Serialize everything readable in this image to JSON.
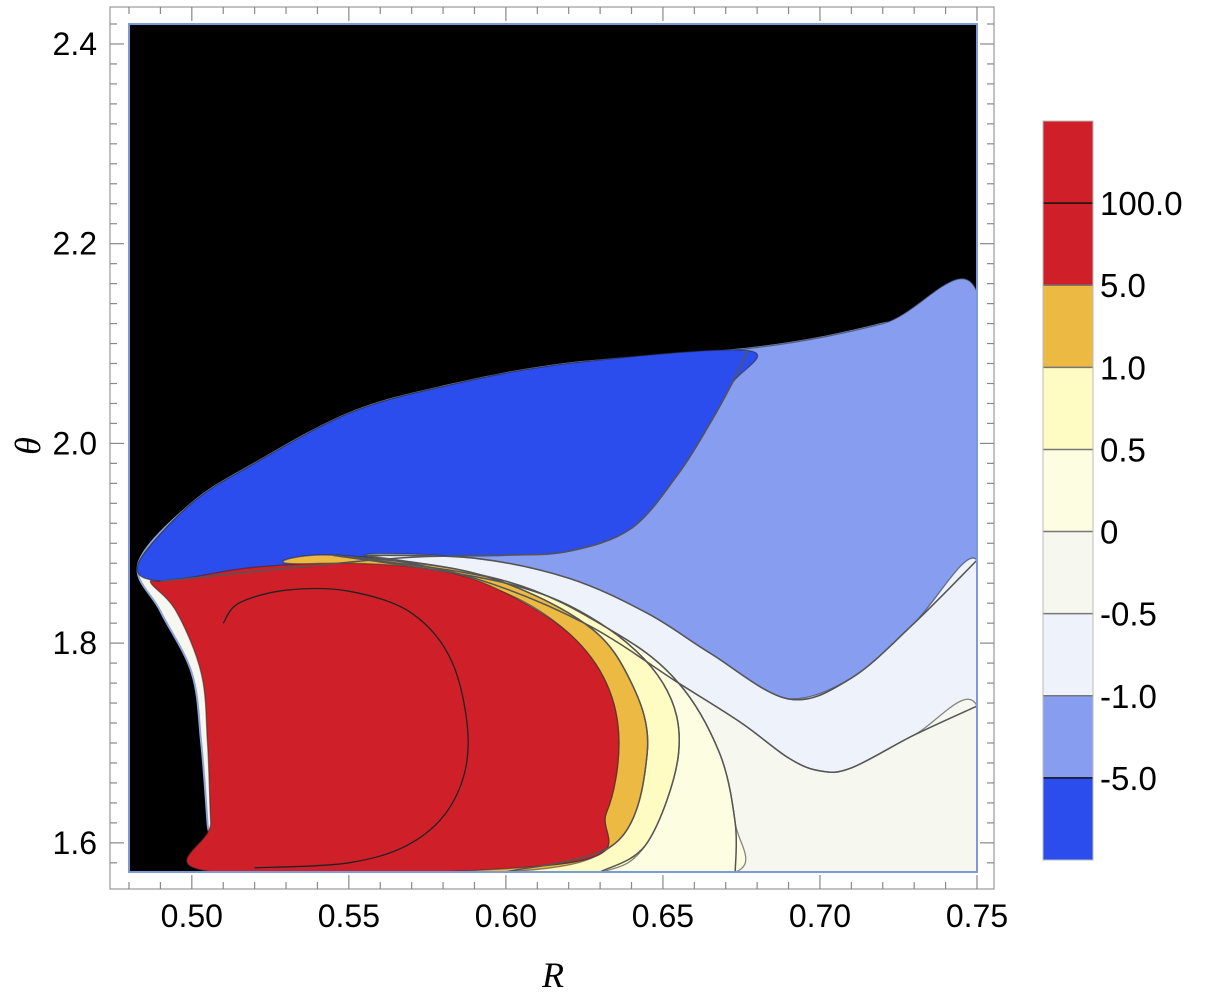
{
  "chart_data": {
    "type": "heatmap",
    "subtype": "filled-contour",
    "title": "",
    "xlabel": "R",
    "ylabel": "θ",
    "xlim": [
      0.48,
      0.75
    ],
    "ylim": [
      1.5708,
      2.42
    ],
    "x_ticks": [
      {
        "value": 0.5,
        "label": "0.50"
      },
      {
        "value": 0.55,
        "label": "0.55"
      },
      {
        "value": 0.6,
        "label": "0.60"
      },
      {
        "value": 0.65,
        "label": "0.65"
      },
      {
        "value": 0.7,
        "label": "0.70"
      },
      {
        "value": 0.75,
        "label": "0.75"
      }
    ],
    "y_ticks": [
      {
        "value": 1.6,
        "label": "1.6"
      },
      {
        "value": 1.8,
        "label": "1.8"
      },
      {
        "value": 2.0,
        "label": "2.0"
      },
      {
        "value": 2.2,
        "label": "2.2"
      },
      {
        "value": 2.4,
        "label": "2.4"
      }
    ],
    "grid": false,
    "legend": "right",
    "contour_levels": [
      "-5.0",
      "-1.0",
      "-0.5",
      "0",
      "0.5",
      "1.0",
      "5.0",
      "100.0"
    ],
    "colorbar": [
      {
        "range": "below -5.0",
        "color": "#2c4ded"
      },
      {
        "range": "-5.0 to -1.0",
        "color": "#869df0"
      },
      {
        "range": "-1.0 to -0.5",
        "color": "#eef2fb"
      },
      {
        "range": "-0.5 to 0",
        "color": "#f6f7ee"
      },
      {
        "range": "0 to 0.5",
        "color": "#fdfde2"
      },
      {
        "range": "0.5 to 1.0",
        "color": "#fefbc3"
      },
      {
        "range": "1.0 to 5.0",
        "color": "#ecb943"
      },
      {
        "range": "5.0 to 100.0",
        "color": "#cf202a"
      },
      {
        "range": "above 100.0",
        "color": "#cf202a"
      }
    ],
    "excluded_region_color": "#000000",
    "regions": [
      {
        "color": "#000000",
        "points": [
          [
            0.48,
            1.5708
          ],
          [
            0.48,
            2.42
          ],
          [
            0.75,
            2.42
          ],
          [
            0.75,
            2.152
          ],
          [
            0.72,
            2.12
          ],
          [
            0.68,
            2.096
          ],
          [
            0.62,
            2.08
          ],
          [
            0.58,
            2.057
          ],
          [
            0.55,
            2.03
          ],
          [
            0.52,
            1.98
          ],
          [
            0.5,
            1.94
          ],
          [
            0.483,
            1.88
          ],
          [
            0.49,
            1.832
          ],
          [
            0.5,
            1.77
          ],
          [
            0.503,
            1.7
          ],
          [
            0.505,
            1.62
          ],
          [
            0.506,
            1.5708
          ]
        ]
      },
      {
        "color": "#869df0",
        "points": [
          [
            0.483,
            1.88
          ],
          [
            0.5,
            1.94
          ],
          [
            0.52,
            1.98
          ],
          [
            0.55,
            2.03
          ],
          [
            0.58,
            2.057
          ],
          [
            0.62,
            2.08
          ],
          [
            0.68,
            2.096
          ],
          [
            0.72,
            2.12
          ],
          [
            0.75,
            2.152
          ],
          [
            0.75,
            1.883
          ],
          [
            0.73,
            1.82
          ],
          [
            0.71,
            1.765
          ],
          [
            0.69,
            1.744
          ],
          [
            0.67,
            1.77
          ],
          [
            0.64,
            1.83
          ],
          [
            0.61,
            1.87
          ],
          [
            0.58,
            1.886
          ],
          [
            0.55,
            1.886
          ],
          [
            0.52,
            1.878
          ],
          [
            0.5,
            1.868
          ],
          [
            0.49,
            1.862
          ]
        ]
      },
      {
        "color": "#2c4ded",
        "points": [
          [
            0.483,
            1.88
          ],
          [
            0.5,
            1.94
          ],
          [
            0.52,
            1.98
          ],
          [
            0.55,
            2.03
          ],
          [
            0.58,
            2.057
          ],
          [
            0.62,
            2.08
          ],
          [
            0.677,
            2.093
          ],
          [
            0.672,
            2.06
          ],
          [
            0.665,
            2.02
          ],
          [
            0.655,
            1.97
          ],
          [
            0.64,
            1.915
          ],
          [
            0.62,
            1.892
          ],
          [
            0.6,
            1.888
          ],
          [
            0.57,
            1.886
          ],
          [
            0.54,
            1.878
          ],
          [
            0.515,
            1.87
          ],
          [
            0.49,
            1.862
          ]
        ]
      },
      {
        "color": "#eef2fb",
        "points": [
          [
            0.555,
            1.888
          ],
          [
            0.59,
            1.885
          ],
          [
            0.62,
            1.865
          ],
          [
            0.645,
            1.83
          ],
          [
            0.665,
            1.79
          ],
          [
            0.69,
            1.744
          ],
          [
            0.71,
            1.765
          ],
          [
            0.73,
            1.82
          ],
          [
            0.75,
            1.883
          ],
          [
            0.75,
            1.737
          ],
          [
            0.73,
            1.708
          ],
          [
            0.71,
            1.675
          ],
          [
            0.7,
            1.672
          ],
          [
            0.69,
            1.685
          ],
          [
            0.675,
            1.72
          ],
          [
            0.655,
            1.76
          ],
          [
            0.625,
            1.82
          ],
          [
            0.59,
            1.865
          ]
        ]
      },
      {
        "color": "#f6f7ee",
        "points": [
          [
            0.555,
            1.888
          ],
          [
            0.59,
            1.865
          ],
          [
            0.625,
            1.82
          ],
          [
            0.655,
            1.76
          ],
          [
            0.675,
            1.72
          ],
          [
            0.69,
            1.685
          ],
          [
            0.7,
            1.672
          ],
          [
            0.71,
            1.675
          ],
          [
            0.73,
            1.708
          ],
          [
            0.75,
            1.737
          ],
          [
            0.75,
            1.5708
          ],
          [
            0.673,
            1.5708
          ],
          [
            0.673,
            1.62
          ],
          [
            0.668,
            1.69
          ],
          [
            0.655,
            1.76
          ],
          [
            0.635,
            1.81
          ],
          [
            0.6,
            1.862
          ]
        ]
      },
      {
        "color": "#fdfde2",
        "points": [
          [
            0.545,
            1.888
          ],
          [
            0.6,
            1.862
          ],
          [
            0.635,
            1.81
          ],
          [
            0.655,
            1.76
          ],
          [
            0.668,
            1.69
          ],
          [
            0.673,
            1.62
          ],
          [
            0.673,
            1.5708
          ],
          [
            0.63,
            1.5708
          ],
          [
            0.645,
            1.6
          ],
          [
            0.655,
            1.69
          ],
          [
            0.65,
            1.76
          ],
          [
            0.63,
            1.82
          ],
          [
            0.6,
            1.86
          ]
        ]
      },
      {
        "color": "#fefbc3",
        "points": [
          [
            0.545,
            1.888
          ],
          [
            0.6,
            1.86
          ],
          [
            0.63,
            1.82
          ],
          [
            0.65,
            1.76
          ],
          [
            0.655,
            1.69
          ],
          [
            0.645,
            1.6
          ],
          [
            0.63,
            1.5708
          ],
          [
            0.6,
            1.5708
          ],
          [
            0.635,
            1.6
          ],
          [
            0.645,
            1.69
          ],
          [
            0.64,
            1.76
          ],
          [
            0.625,
            1.82
          ],
          [
            0.59,
            1.87
          ]
        ]
      },
      {
        "color": "#ecb943",
        "points": [
          [
            0.545,
            1.888
          ],
          [
            0.59,
            1.87
          ],
          [
            0.625,
            1.82
          ],
          [
            0.64,
            1.76
          ],
          [
            0.645,
            1.69
          ],
          [
            0.635,
            1.6
          ],
          [
            0.6,
            1.5708
          ],
          [
            0.507,
            1.5708
          ],
          [
            0.62,
            1.58
          ],
          [
            0.632,
            1.63
          ],
          [
            0.636,
            1.7
          ],
          [
            0.632,
            1.76
          ],
          [
            0.62,
            1.81
          ],
          [
            0.6,
            1.85
          ],
          [
            0.57,
            1.875
          ],
          [
            0.53,
            1.88
          ]
        ]
      },
      {
        "color": "#cf202a",
        "points": [
          [
            0.49,
            1.862
          ],
          [
            0.5,
            1.866
          ],
          [
            0.52,
            1.876
          ],
          [
            0.55,
            1.88
          ],
          [
            0.58,
            1.872
          ],
          [
            0.6,
            1.85
          ],
          [
            0.62,
            1.81
          ],
          [
            0.632,
            1.76
          ],
          [
            0.636,
            1.7
          ],
          [
            0.632,
            1.63
          ],
          [
            0.62,
            1.58
          ],
          [
            0.507,
            1.5708
          ],
          [
            0.506,
            1.62
          ],
          [
            0.505,
            1.7
          ],
          [
            0.503,
            1.77
          ],
          [
            0.495,
            1.832
          ],
          [
            0.487,
            1.86
          ]
        ]
      }
    ],
    "inner_contour": [
      [
        0.51,
        1.82
      ],
      [
        0.515,
        1.84
      ],
      [
        0.53,
        1.853
      ],
      [
        0.55,
        1.852
      ],
      [
        0.57,
        1.83
      ],
      [
        0.583,
        1.78
      ],
      [
        0.588,
        1.7
      ],
      [
        0.583,
        1.64
      ],
      [
        0.57,
        1.6
      ],
      [
        0.55,
        1.58
      ],
      [
        0.52,
        1.575
      ]
    ],
    "contour_lines": [
      [
        [
          0.555,
          1.888
        ],
        [
          0.59,
          1.865
        ],
        [
          0.625,
          1.82
        ],
        [
          0.655,
          1.76
        ],
        [
          0.675,
          1.72
        ],
        [
          0.69,
          1.685
        ],
        [
          0.7,
          1.672
        ],
        [
          0.71,
          1.675
        ],
        [
          0.73,
          1.708
        ],
        [
          0.75,
          1.737
        ]
      ],
      [
        [
          0.555,
          1.888
        ],
        [
          0.59,
          1.885
        ],
        [
          0.62,
          1.865
        ],
        [
          0.645,
          1.83
        ],
        [
          0.665,
          1.79
        ],
        [
          0.69,
          1.744
        ],
        [
          0.71,
          1.765
        ],
        [
          0.73,
          1.82
        ],
        [
          0.75,
          1.883
        ]
      ],
      [
        [
          0.545,
          1.888
        ],
        [
          0.6,
          1.862
        ],
        [
          0.635,
          1.81
        ],
        [
          0.655,
          1.76
        ],
        [
          0.668,
          1.69
        ],
        [
          0.673,
          1.62
        ],
        [
          0.673,
          1.5708
        ]
      ],
      [
        [
          0.545,
          1.888
        ],
        [
          0.6,
          1.86
        ],
        [
          0.63,
          1.82
        ],
        [
          0.65,
          1.76
        ],
        [
          0.655,
          1.69
        ],
        [
          0.645,
          1.6
        ],
        [
          0.63,
          1.5708
        ]
      ],
      [
        [
          0.545,
          1.888
        ],
        [
          0.59,
          1.87
        ],
        [
          0.625,
          1.82
        ],
        [
          0.64,
          1.76
        ],
        [
          0.645,
          1.69
        ],
        [
          0.635,
          1.6
        ],
        [
          0.6,
          1.5708
        ]
      ],
      [
        [
          0.677,
          2.093
        ],
        [
          0.672,
          2.06
        ],
        [
          0.665,
          2.02
        ],
        [
          0.655,
          1.97
        ],
        [
          0.64,
          1.915
        ],
        [
          0.62,
          1.892
        ],
        [
          0.6,
          1.888
        ],
        [
          0.57,
          1.886
        ],
        [
          0.54,
          1.878
        ],
        [
          0.515,
          1.87
        ],
        [
          0.49,
          1.862
        ]
      ]
    ]
  }
}
